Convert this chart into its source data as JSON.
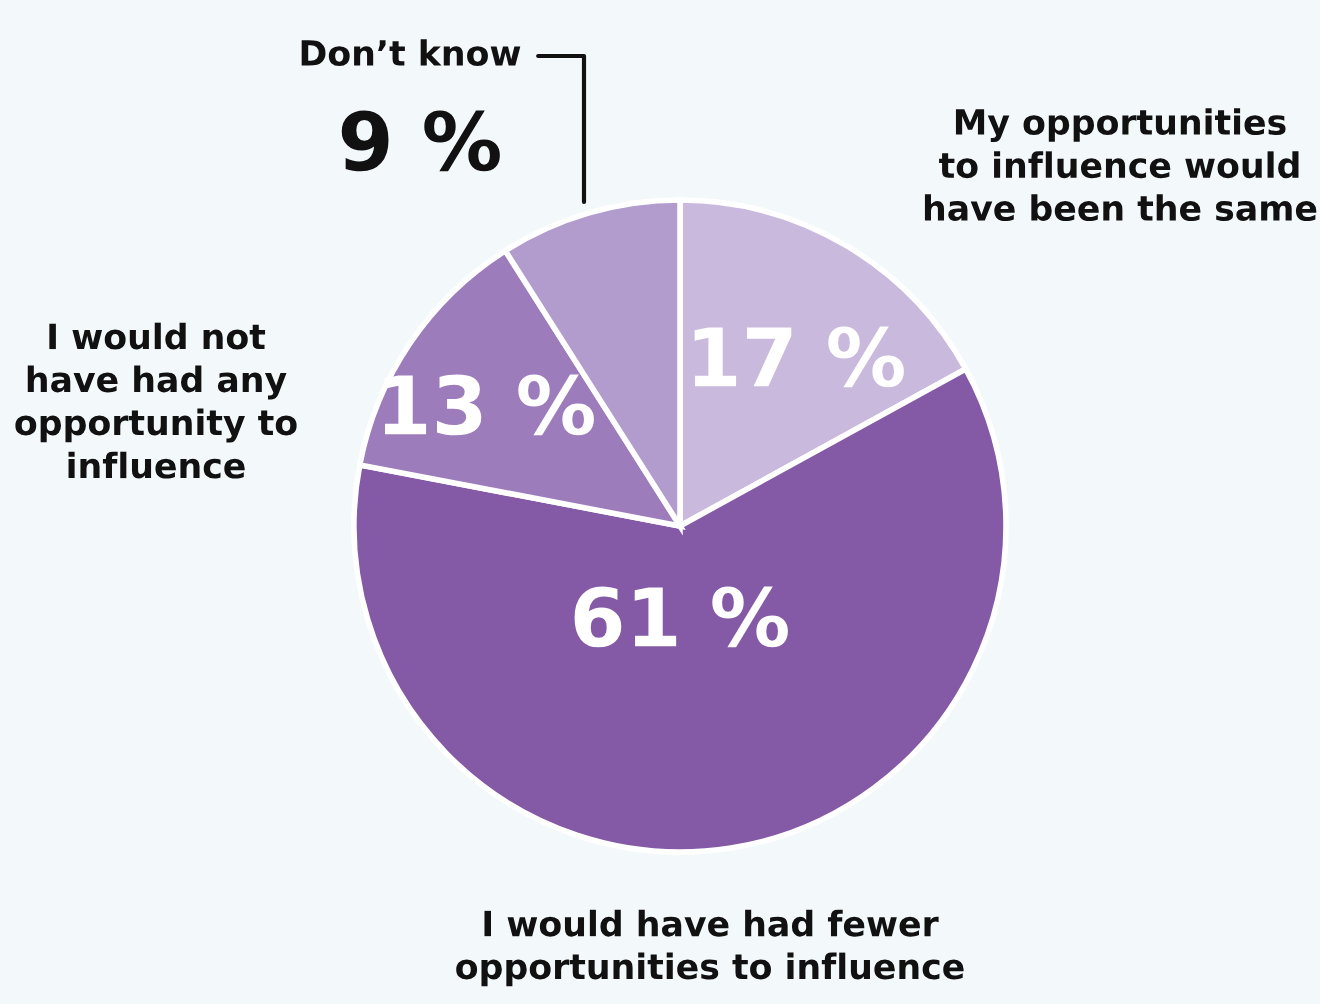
{
  "chart_data": {
    "type": "pie",
    "categories": [
      "My opportunities\nto influence would\nhave been the same",
      "I would have had fewer\nopportunities to influence",
      "I would not\nhave had any\nopportunity to\ninfluence",
      "Don’t know"
    ],
    "values": [
      17,
      61,
      13,
      9
    ],
    "colors": [
      "#c9b9dd",
      "#8459a6",
      "#9d7cbc",
      "#b19ccd"
    ],
    "value_labels": [
      "17 %",
      "61 %",
      "13 %",
      "9 %"
    ]
  }
}
